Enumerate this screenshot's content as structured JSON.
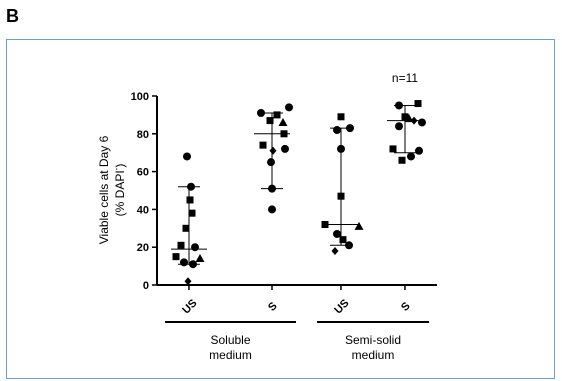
{
  "panel_label": "B",
  "chart_data": {
    "type": "scatter",
    "ylabel_line1": "Viable cells at Day 6",
    "ylabel_line2": "(% DAPI",
    "ylabel_super": "-",
    "ylabel_close": ")",
    "ylim": [
      0,
      100
    ],
    "yticks": [
      0,
      20,
      40,
      60,
      80,
      100
    ],
    "categories": [
      "US",
      "S",
      "US",
      "S"
    ],
    "groups": [
      {
        "label_line1": "Soluble",
        "label_line2": "medium",
        "categories": [
          0,
          1
        ]
      },
      {
        "label_line1": "Semi-solid",
        "label_line2": "medium",
        "categories": [
          2,
          3
        ]
      }
    ],
    "annotation": {
      "text": "n=11",
      "category": 3
    },
    "summary": [
      {
        "median": 19,
        "low": 11,
        "high": 52
      },
      {
        "median": 80,
        "low": 51,
        "high": 91
      },
      {
        "median": 32,
        "low": 21,
        "high": 83
      },
      {
        "median": 87,
        "low": 70,
        "high": 95
      }
    ],
    "points": [
      [
        {
          "y": 68,
          "marker": "circle",
          "dx": -2
        },
        {
          "y": 52,
          "marker": "circle",
          "dx": 2
        },
        {
          "y": 45,
          "marker": "square",
          "dx": 1
        },
        {
          "y": 38,
          "marker": "square",
          "dx": 3
        },
        {
          "y": 30,
          "marker": "square",
          "dx": -3
        },
        {
          "y": 21,
          "marker": "square",
          "dx": -8
        },
        {
          "y": 20,
          "marker": "circle",
          "dx": 6
        },
        {
          "y": 15,
          "marker": "square",
          "dx": -13
        },
        {
          "y": 12,
          "marker": "circle",
          "dx": -5
        },
        {
          "y": 11,
          "marker": "circle",
          "dx": 4
        },
        {
          "y": 14,
          "marker": "triangle",
          "dx": 11
        },
        {
          "y": 2,
          "marker": "diamond",
          "dx": -1
        }
      ],
      [
        {
          "y": 94,
          "marker": "circle",
          "dx": 17
        },
        {
          "y": 91,
          "marker": "circle",
          "dx": -11
        },
        {
          "y": 90,
          "marker": "square",
          "dx": 5
        },
        {
          "y": 87,
          "marker": "square",
          "dx": -2
        },
        {
          "y": 86,
          "marker": "triangle",
          "dx": 11
        },
        {
          "y": 80,
          "marker": "square",
          "dx": 12
        },
        {
          "y": 74,
          "marker": "square",
          "dx": -9
        },
        {
          "y": 72,
          "marker": "circle",
          "dx": 13
        },
        {
          "y": 71,
          "marker": "diamond",
          "dx": 1
        },
        {
          "y": 65,
          "marker": "circle",
          "dx": -1
        },
        {
          "y": 51,
          "marker": "circle",
          "dx": 0
        },
        {
          "y": 40,
          "marker": "circle",
          "dx": 0
        }
      ],
      [
        {
          "y": 89,
          "marker": "square",
          "dx": 0
        },
        {
          "y": 83,
          "marker": "circle",
          "dx": 9
        },
        {
          "y": 82,
          "marker": "circle",
          "dx": -4
        },
        {
          "y": 72,
          "marker": "circle",
          "dx": 0
        },
        {
          "y": 47,
          "marker": "square",
          "dx": 0
        },
        {
          "y": 32,
          "marker": "square",
          "dx": -16
        },
        {
          "y": 31,
          "marker": "triangle",
          "dx": 18
        },
        {
          "y": 27,
          "marker": "circle",
          "dx": -4
        },
        {
          "y": 24,
          "marker": "square",
          "dx": 2
        },
        {
          "y": 21,
          "marker": "circle",
          "dx": 8
        },
        {
          "y": 18,
          "marker": "diamond",
          "dx": -6
        }
      ],
      [
        {
          "y": 96,
          "marker": "square",
          "dx": 13
        },
        {
          "y": 95,
          "marker": "circle",
          "dx": -6
        },
        {
          "y": 89,
          "marker": "square",
          "dx": 0
        },
        {
          "y": 88,
          "marker": "triangle",
          "dx": 4
        },
        {
          "y": 87,
          "marker": "diamond",
          "dx": 9
        },
        {
          "y": 86,
          "marker": "circle",
          "dx": 17
        },
        {
          "y": 84,
          "marker": "circle",
          "dx": -6
        },
        {
          "y": 72,
          "marker": "square",
          "dx": -12
        },
        {
          "y": 71,
          "marker": "circle",
          "dx": 14
        },
        {
          "y": 68,
          "marker": "circle",
          "dx": 6
        },
        {
          "y": 66,
          "marker": "square",
          "dx": -3
        }
      ]
    ]
  }
}
